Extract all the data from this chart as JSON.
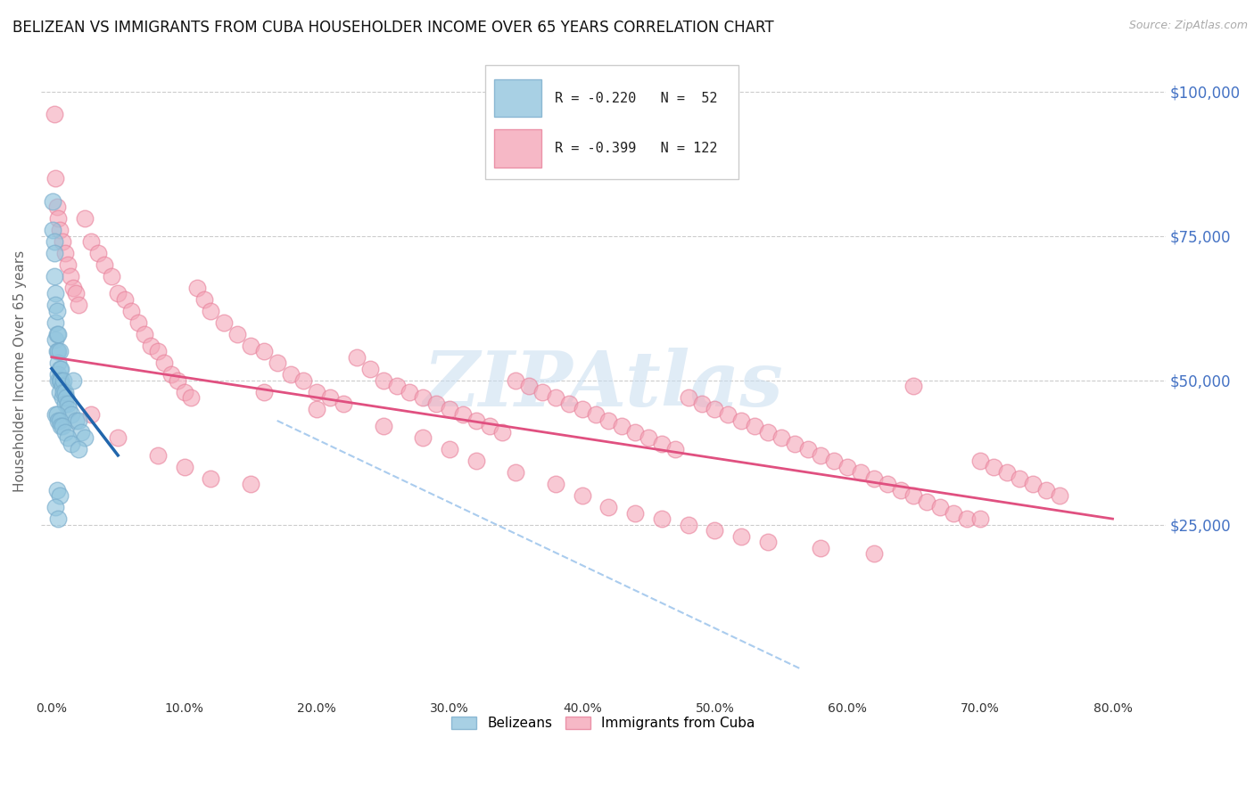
{
  "title": "BELIZEAN VS IMMIGRANTS FROM CUBA HOUSEHOLDER INCOME OVER 65 YEARS CORRELATION CHART",
  "source": "Source: ZipAtlas.com",
  "ylabel": "Householder Income Over 65 years",
  "xlabel_ticks": [
    "0.0%",
    "10.0%",
    "20.0%",
    "30.0%",
    "40.0%",
    "50.0%",
    "60.0%",
    "70.0%",
    "80.0%"
  ],
  "xlabel_vals": [
    0.0,
    0.1,
    0.2,
    0.3,
    0.4,
    0.5,
    0.6,
    0.7,
    0.8
  ],
  "ytick_vals": [
    0,
    25000,
    50000,
    75000,
    100000
  ],
  "ytick_labels": [
    "",
    "$25,000",
    "$50,000",
    "$75,000",
    "$100,000"
  ],
  "ylim": [
    -5000,
    108000
  ],
  "xlim": [
    -0.008,
    0.84
  ],
  "blue_R": -0.22,
  "blue_N": 52,
  "pink_R": -0.399,
  "pink_N": 122,
  "blue_color": "#92C5DE",
  "blue_edge": "#7AADCC",
  "pink_color": "#F4A6B8",
  "pink_edge": "#E8809A",
  "blue_line_color": "#2166ac",
  "pink_line_color": "#E05080",
  "dash_color": "#AACCEE",
  "blue_label": "Belizeans",
  "pink_label": "Immigrants from Cuba",
  "watermark_color": "#C8DDF0",
  "watermark_text": "ZIPAtlas",
  "title_fontsize": 12,
  "axis_label_fontsize": 11,
  "tick_fontsize": 10,
  "blue_scatter_x": [
    0.001,
    0.001,
    0.002,
    0.002,
    0.002,
    0.003,
    0.003,
    0.003,
    0.003,
    0.004,
    0.004,
    0.004,
    0.005,
    0.005,
    0.005,
    0.005,
    0.005,
    0.006,
    0.006,
    0.006,
    0.006,
    0.007,
    0.007,
    0.008,
    0.008,
    0.009,
    0.009,
    0.01,
    0.01,
    0.011,
    0.012,
    0.013,
    0.015,
    0.016,
    0.018,
    0.02,
    0.022,
    0.025,
    0.003,
    0.004,
    0.005,
    0.006,
    0.007,
    0.008,
    0.01,
    0.012,
    0.015,
    0.02,
    0.004,
    0.006,
    0.003,
    0.005
  ],
  "blue_scatter_y": [
    81000,
    76000,
    74000,
    72000,
    68000,
    65000,
    63000,
    60000,
    57000,
    62000,
    58000,
    55000,
    58000,
    55000,
    53000,
    51000,
    50000,
    55000,
    52000,
    50000,
    48000,
    52000,
    50000,
    49000,
    47000,
    50000,
    48000,
    48000,
    46000,
    47000,
    46000,
    45000,
    44000,
    50000,
    43000,
    43000,
    41000,
    40000,
    44000,
    44000,
    43000,
    43000,
    42000,
    42000,
    41000,
    40000,
    39000,
    38000,
    31000,
    30000,
    28000,
    26000
  ],
  "pink_scatter_x": [
    0.002,
    0.003,
    0.004,
    0.005,
    0.006,
    0.008,
    0.01,
    0.012,
    0.014,
    0.016,
    0.018,
    0.02,
    0.025,
    0.03,
    0.035,
    0.04,
    0.045,
    0.05,
    0.055,
    0.06,
    0.065,
    0.07,
    0.075,
    0.08,
    0.085,
    0.09,
    0.095,
    0.1,
    0.105,
    0.11,
    0.115,
    0.12,
    0.13,
    0.14,
    0.15,
    0.16,
    0.17,
    0.18,
    0.19,
    0.2,
    0.21,
    0.22,
    0.23,
    0.24,
    0.25,
    0.26,
    0.27,
    0.28,
    0.29,
    0.3,
    0.31,
    0.32,
    0.33,
    0.34,
    0.35,
    0.36,
    0.37,
    0.38,
    0.39,
    0.4,
    0.41,
    0.42,
    0.43,
    0.44,
    0.45,
    0.46,
    0.47,
    0.48,
    0.49,
    0.5,
    0.51,
    0.52,
    0.53,
    0.54,
    0.55,
    0.56,
    0.57,
    0.58,
    0.59,
    0.6,
    0.61,
    0.62,
    0.63,
    0.64,
    0.65,
    0.66,
    0.67,
    0.68,
    0.69,
    0.7,
    0.71,
    0.72,
    0.73,
    0.74,
    0.75,
    0.76,
    0.03,
    0.05,
    0.08,
    0.1,
    0.12,
    0.15,
    0.16,
    0.2,
    0.25,
    0.28,
    0.3,
    0.32,
    0.35,
    0.38,
    0.4,
    0.42,
    0.44,
    0.46,
    0.48,
    0.5,
    0.52,
    0.54,
    0.58,
    0.62,
    0.65,
    0.7
  ],
  "pink_scatter_y": [
    96000,
    85000,
    80000,
    78000,
    76000,
    74000,
    72000,
    70000,
    68000,
    66000,
    65000,
    63000,
    78000,
    74000,
    72000,
    70000,
    68000,
    65000,
    64000,
    62000,
    60000,
    58000,
    56000,
    55000,
    53000,
    51000,
    50000,
    48000,
    47000,
    66000,
    64000,
    62000,
    60000,
    58000,
    56000,
    55000,
    53000,
    51000,
    50000,
    48000,
    47000,
    46000,
    54000,
    52000,
    50000,
    49000,
    48000,
    47000,
    46000,
    45000,
    44000,
    43000,
    42000,
    41000,
    50000,
    49000,
    48000,
    47000,
    46000,
    45000,
    44000,
    43000,
    42000,
    41000,
    40000,
    39000,
    38000,
    47000,
    46000,
    45000,
    44000,
    43000,
    42000,
    41000,
    40000,
    39000,
    38000,
    37000,
    36000,
    35000,
    34000,
    33000,
    32000,
    31000,
    30000,
    29000,
    28000,
    27000,
    26000,
    36000,
    35000,
    34000,
    33000,
    32000,
    31000,
    30000,
    44000,
    40000,
    37000,
    35000,
    33000,
    32000,
    48000,
    45000,
    42000,
    40000,
    38000,
    36000,
    34000,
    32000,
    30000,
    28000,
    27000,
    26000,
    25000,
    24000,
    23000,
    22000,
    21000,
    20000,
    49000,
    26000
  ],
  "blue_line_x": [
    0.0,
    0.05
  ],
  "blue_line_y": [
    52000,
    37000
  ],
  "pink_line_x": [
    0.0,
    0.8
  ],
  "pink_line_y": [
    54000,
    26000
  ],
  "dash_line_x": [
    0.17,
    0.565
  ],
  "dash_line_y": [
    43000,
    0
  ]
}
